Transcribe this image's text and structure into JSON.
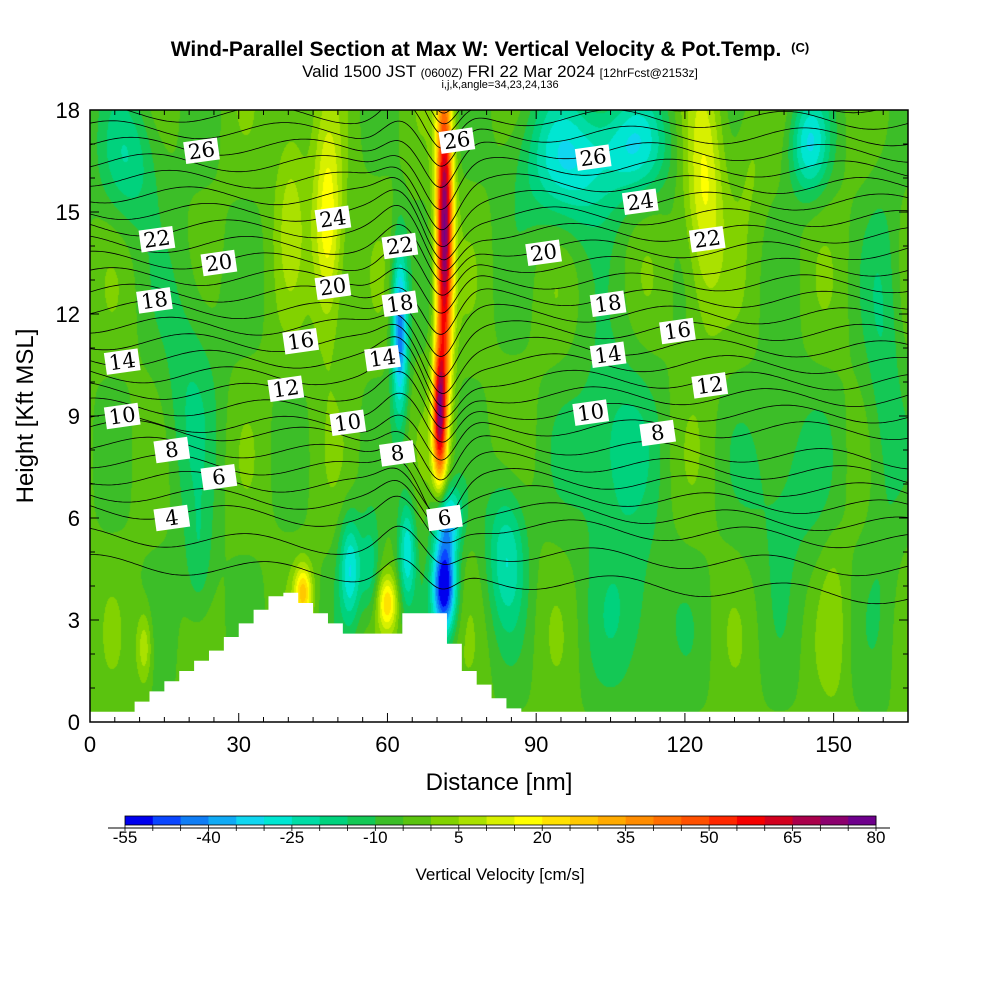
{
  "chart_data": {
    "type": "heatmap",
    "title": "Wind-Parallel Section at Max W: Vertical Velocity & Pot.Temp.",
    "title_mark": "(C)",
    "subtitle_parts": [
      "Valid 1500 JST",
      "(0600Z)",
      "FRI 22 Mar 2024",
      "[12hrFcst@2153z]"
    ],
    "subtitle2": "i,j,k,angle=34,23,24,136",
    "xlabel": "Distance [nm]",
    "ylabel": "Height [Kft MSL]",
    "xlim": [
      0,
      165
    ],
    "ylim": [
      0,
      18
    ],
    "x_ticks": [
      "0",
      "30",
      "60",
      "90",
      "120",
      "150"
    ],
    "x_tick_values": [
      0,
      30,
      60,
      90,
      120,
      150
    ],
    "y_ticks": [
      "0",
      "3",
      "6",
      "9",
      "12",
      "15",
      "18"
    ],
    "y_tick_values": [
      0,
      3,
      6,
      9,
      12,
      15,
      18
    ],
    "colorbar": {
      "label": "Vertical Velocity [cm/s]",
      "tick_labels": [
        "-55",
        "-40",
        "-25",
        "-10",
        "5",
        "20",
        "35",
        "50",
        "65",
        "80"
      ],
      "min": -55,
      "max": 80,
      "step": 5,
      "colors": [
        "#0000ee",
        "#0a46ff",
        "#0f7df5",
        "#10aaf5",
        "#10d6f0",
        "#00e6d2",
        "#00dca5",
        "#00d27d",
        "#14c855",
        "#3cbe28",
        "#5ac30f",
        "#82d200",
        "#aae100",
        "#d7f000",
        "#ffff00",
        "#ffe100",
        "#ffc800",
        "#ffaa00",
        "#ff8c00",
        "#ff6e00",
        "#ff5000",
        "#ff2800",
        "#f50000",
        "#d2001e",
        "#aa004b",
        "#8c006e",
        "#6e008c"
      ]
    },
    "contour_levels": [
      "4",
      "6",
      "8",
      "10",
      "12",
      "14",
      "16",
      "18",
      "20",
      "22",
      "24",
      "26"
    ],
    "contour_labels": [
      {
        "text": "26",
        "x": 22.5,
        "y": 16.8
      },
      {
        "text": "22",
        "x": 13.5,
        "y": 14.2
      },
      {
        "text": "20",
        "x": 26.0,
        "y": 13.5
      },
      {
        "text": "18",
        "x": 13.0,
        "y": 12.4
      },
      {
        "text": "14",
        "x": 6.5,
        "y": 10.6
      },
      {
        "text": "10",
        "x": 6.5,
        "y": 9.0
      },
      {
        "text": "8",
        "x": 16.5,
        "y": 8.0
      },
      {
        "text": "6",
        "x": 26.0,
        "y": 7.2
      },
      {
        "text": "4",
        "x": 16.5,
        "y": 6.0
      },
      {
        "text": "24",
        "x": 49.0,
        "y": 14.8
      },
      {
        "text": "20",
        "x": 49.0,
        "y": 12.8
      },
      {
        "text": "16",
        "x": 42.5,
        "y": 11.2
      },
      {
        "text": "12",
        "x": 39.5,
        "y": 9.8
      },
      {
        "text": "22",
        "x": 62.5,
        "y": 14.0
      },
      {
        "text": "18",
        "x": 62.5,
        "y": 12.3
      },
      {
        "text": "14",
        "x": 59.0,
        "y": 10.7
      },
      {
        "text": "10",
        "x": 52.0,
        "y": 8.8
      },
      {
        "text": "8",
        "x": 62.0,
        "y": 7.9
      },
      {
        "text": "6",
        "x": 71.5,
        "y": 6.0
      },
      {
        "text": "26",
        "x": 74.0,
        "y": 17.1
      },
      {
        "text": "26",
        "x": 101.5,
        "y": 16.6
      },
      {
        "text": "24",
        "x": 111.0,
        "y": 15.3
      },
      {
        "text": "20",
        "x": 91.5,
        "y": 13.8
      },
      {
        "text": "22",
        "x": 124.5,
        "y": 14.2
      },
      {
        "text": "18",
        "x": 104.5,
        "y": 12.3
      },
      {
        "text": "16",
        "x": 118.5,
        "y": 11.5
      },
      {
        "text": "14",
        "x": 104.5,
        "y": 10.8
      },
      {
        "text": "12",
        "x": 125.0,
        "y": 9.9
      },
      {
        "text": "10",
        "x": 101.0,
        "y": 9.1
      },
      {
        "text": "8",
        "x": 114.5,
        "y": 8.5
      }
    ],
    "terrain_profile": {
      "x": [
        0,
        9,
        12,
        15,
        18,
        21,
        24,
        27,
        30,
        33,
        36,
        39,
        42,
        45,
        48,
        51,
        54,
        57,
        60,
        63,
        66,
        69,
        72,
        75,
        78,
        81,
        84,
        87,
        90,
        165
      ],
      "height": [
        0.3,
        0.6,
        0.9,
        1.2,
        1.5,
        1.8,
        2.1,
        2.5,
        2.9,
        3.3,
        3.7,
        3.8,
        3.5,
        3.2,
        2.9,
        2.6,
        2.6,
        2.6,
        2.6,
        3.2,
        3.2,
        3.2,
        2.3,
        1.5,
        1.1,
        0.7,
        0.4,
        0.3,
        0.3,
        0.3
      ]
    },
    "w_features": [
      {
        "x": 71.5,
        "y": 14.5,
        "w": 80,
        "sx": 1.7,
        "sy": 4.5
      },
      {
        "x": 70.5,
        "y": 9.0,
        "w": 65,
        "sx": 1.4,
        "sy": 2.0
      },
      {
        "x": 62.5,
        "y": 11.5,
        "w": -40,
        "sx": 1.6,
        "sy": 2.5
      },
      {
        "x": 64.0,
        "y": 5.0,
        "w": -25,
        "sx": 1.8,
        "sy": 1.6
      },
      {
        "x": 71.5,
        "y": 4.0,
        "w": -55,
        "sx": 2.4,
        "sy": 1.4
      },
      {
        "x": 72.0,
        "y": 6.0,
        "w": -30,
        "sx": 2.8,
        "sy": 1.0
      },
      {
        "x": 52.5,
        "y": 4.5,
        "w": -25,
        "sx": 2.2,
        "sy": 1.6
      },
      {
        "x": 56.5,
        "y": 4.5,
        "w": -15,
        "sx": 2.0,
        "sy": 1.5
      },
      {
        "x": 48.0,
        "y": 14.5,
        "w": 25,
        "sx": 3.0,
        "sy": 3.0
      },
      {
        "x": 40.5,
        "y": 15.5,
        "w": 10,
        "sx": 3.2,
        "sy": 3.0
      },
      {
        "x": 43.0,
        "y": 3.8,
        "w": 30,
        "sx": 1.8,
        "sy": 0.8
      },
      {
        "x": 60.0,
        "y": 3.5,
        "w": 25,
        "sx": 2.0,
        "sy": 0.8
      },
      {
        "x": 11.0,
        "y": 2.2,
        "w": 15,
        "sx": 1.6,
        "sy": 1.1
      },
      {
        "x": 124.0,
        "y": 15.5,
        "w": 20,
        "sx": 3.8,
        "sy": 3.5
      },
      {
        "x": 133.0,
        "y": 16.5,
        "w": 5,
        "sx": 3.0,
        "sy": 2.0
      },
      {
        "x": 150.0,
        "y": 3.0,
        "w": 5,
        "sx": 2.5,
        "sy": 2.5
      },
      {
        "x": 22.0,
        "y": 4.5,
        "w": -10,
        "sx": 3.0,
        "sy": 2.0
      },
      {
        "x": 97.0,
        "y": 16.5,
        "w": -25,
        "sx": 10.0,
        "sy": 2.0
      },
      {
        "x": 110.0,
        "y": 17.0,
        "w": -20,
        "sx": 7.0,
        "sy": 1.5
      },
      {
        "x": 145.0,
        "y": 17.0,
        "w": -25,
        "sx": 4.0,
        "sy": 1.5
      },
      {
        "x": 105.0,
        "y": 8.0,
        "w": -15,
        "sx": 8.0,
        "sy": 3.0
      },
      {
        "x": 140.0,
        "y": 7.0,
        "w": -10,
        "sx": 8.0,
        "sy": 3.0
      },
      {
        "x": 84.0,
        "y": 5.0,
        "w": -20,
        "sx": 4.0,
        "sy": 2.2
      },
      {
        "x": 110.0,
        "y": 3.0,
        "w": -10,
        "sx": 8.0,
        "sy": 2.5
      },
      {
        "x": 8.0,
        "y": 16.5,
        "w": -15,
        "sx": 6.0,
        "sy": 2.0
      },
      {
        "x": 20.0,
        "y": 10.0,
        "w": -10,
        "sx": 6.0,
        "sy": 4.0
      },
      {
        "x": 160.0,
        "y": 10.0,
        "w": -10,
        "sx": 4.0,
        "sy": 6.0
      }
    ]
  }
}
